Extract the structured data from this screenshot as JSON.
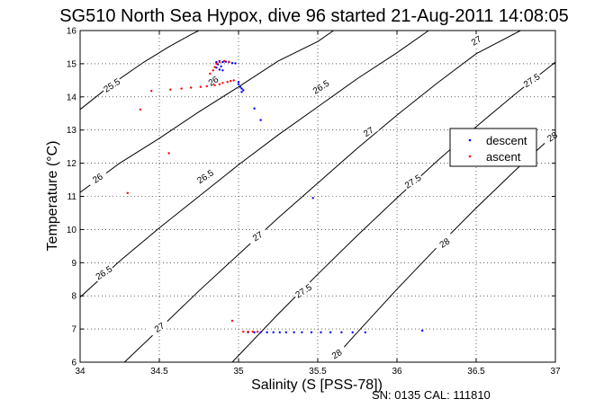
{
  "figure": {
    "title": "SG510 North Sea Hypox, dive 96 started 21-Aug-2011 14:08:05",
    "footer": "SN: 0135  CAL: 111810"
  },
  "chart_data": {
    "type": "scatter",
    "title": "SG510 North Sea Hypox, dive 96 started 21-Aug-2011 14:08:05",
    "xlabel": "Salinity (S [PSS-78])",
    "ylabel": "Temperature (°C)",
    "xlim": [
      34,
      37
    ],
    "ylim": [
      6,
      16
    ],
    "xticks": [
      34,
      34.5,
      35,
      35.5,
      36,
      36.5,
      37
    ],
    "xtick_labels": [
      "34",
      "34.5",
      "35",
      "35.5",
      "36",
      "36.5",
      "37"
    ],
    "yticks": [
      6,
      7,
      8,
      9,
      10,
      11,
      12,
      13,
      14,
      15,
      16
    ],
    "ytick_labels": [
      "6",
      "7",
      "8",
      "9",
      "10",
      "11",
      "12",
      "13",
      "14",
      "15",
      "16"
    ],
    "grid": true,
    "legend_position": "right",
    "series": [
      {
        "name": "descent",
        "color": "#0000ff",
        "points": [
          [
            34.86,
            15.05
          ],
          [
            34.88,
            15.08
          ],
          [
            34.9,
            15.05
          ],
          [
            34.92,
            15.06
          ],
          [
            34.94,
            15.05
          ],
          [
            34.96,
            15.02
          ],
          [
            34.98,
            15.01
          ],
          [
            34.87,
            14.98
          ],
          [
            34.89,
            14.92
          ],
          [
            34.86,
            14.88
          ],
          [
            34.9,
            14.8
          ],
          [
            34.88,
            14.82
          ],
          [
            35.0,
            14.45
          ],
          [
            35.0,
            14.38
          ],
          [
            35.01,
            14.3
          ],
          [
            35.02,
            14.25
          ],
          [
            35.03,
            14.2
          ],
          [
            35.02,
            14.15
          ],
          [
            35.1,
            13.65
          ],
          [
            35.14,
            13.3
          ],
          [
            35.47,
            10.95
          ],
          [
            35.06,
            6.9
          ],
          [
            35.1,
            6.9
          ],
          [
            35.14,
            6.9
          ],
          [
            35.18,
            6.9
          ],
          [
            35.22,
            6.9
          ],
          [
            35.26,
            6.9
          ],
          [
            35.3,
            6.9
          ],
          [
            35.35,
            6.9
          ],
          [
            35.4,
            6.9
          ],
          [
            35.46,
            6.9
          ],
          [
            35.52,
            6.9
          ],
          [
            35.58,
            6.9
          ],
          [
            35.65,
            6.9
          ],
          [
            35.72,
            6.9
          ],
          [
            35.8,
            6.9
          ],
          [
            36.16,
            6.95
          ]
        ]
      },
      {
        "name": "ascent",
        "color": "#ff0000",
        "points": [
          [
            34.3,
            11.1
          ],
          [
            34.38,
            13.62
          ],
          [
            34.45,
            14.18
          ],
          [
            34.56,
            12.3
          ],
          [
            34.57,
            14.22
          ],
          [
            34.64,
            14.25
          ],
          [
            34.7,
            14.28
          ],
          [
            34.76,
            14.3
          ],
          [
            34.8,
            14.32
          ],
          [
            34.85,
            14.35
          ],
          [
            34.88,
            14.38
          ],
          [
            34.9,
            14.42
          ],
          [
            34.93,
            14.45
          ],
          [
            34.95,
            14.48
          ],
          [
            34.97,
            14.5
          ],
          [
            34.82,
            14.7
          ],
          [
            34.84,
            14.8
          ],
          [
            34.85,
            14.9
          ],
          [
            34.86,
            15.0
          ],
          [
            34.88,
            15.05
          ],
          [
            34.91,
            15.08
          ],
          [
            34.94,
            15.06
          ],
          [
            34.96,
            7.25
          ],
          [
            35.03,
            6.92
          ],
          [
            35.06,
            6.92
          ],
          [
            35.09,
            6.92
          ],
          [
            35.12,
            6.92
          ]
        ]
      }
    ],
    "contours": [
      {
        "label": "25.5",
        "points": [
          [
            34.0,
            13.62
          ],
          [
            34.2,
            14.38
          ],
          [
            34.4,
            15.04
          ],
          [
            34.56,
            15.51
          ],
          [
            34.7,
            15.88
          ],
          [
            34.75,
            16.0
          ]
        ],
        "label_at": [
          34.2,
          14.35
        ]
      },
      {
        "label": "26",
        "points": [
          [
            34.0,
            11.12
          ],
          [
            34.25,
            12.0
          ],
          [
            34.5,
            12.75
          ],
          [
            34.75,
            13.55
          ],
          [
            35.0,
            14.3
          ],
          [
            35.25,
            15.08
          ],
          [
            35.5,
            15.67
          ],
          [
            35.6,
            16.0
          ]
        ],
        "label_at": [
          34.11,
          11.55
        ]
      },
      {
        "label": "26",
        "points": [],
        "label_at": [
          34.84,
          14.48
        ]
      },
      {
        "label": "26.5",
        "points": [
          [
            34.0,
            7.96
          ],
          [
            34.25,
            9.05
          ],
          [
            34.5,
            10.05
          ],
          [
            34.75,
            11.0
          ],
          [
            35.0,
            11.95
          ],
          [
            35.25,
            12.85
          ],
          [
            35.5,
            13.7
          ],
          [
            35.75,
            14.55
          ],
          [
            36.0,
            15.33
          ],
          [
            36.2,
            16.0
          ]
        ],
        "label_at": [
          34.15,
          8.7
        ]
      },
      {
        "label": "26.5",
        "points": [],
        "label_at": [
          34.79,
          11.6
        ]
      },
      {
        "label": "26.5",
        "points": [],
        "label_at": [
          35.52,
          14.3
        ]
      },
      {
        "label": "27",
        "points": [
          [
            34.28,
            6.0
          ],
          [
            34.5,
            7.0
          ],
          [
            34.75,
            8.15
          ],
          [
            35.0,
            9.25
          ],
          [
            35.25,
            10.35
          ],
          [
            35.5,
            11.4
          ],
          [
            35.75,
            12.45
          ],
          [
            36.0,
            13.45
          ],
          [
            36.25,
            14.4
          ],
          [
            36.5,
            15.3
          ],
          [
            36.78,
            16.0
          ]
        ],
        "label_at": [
          34.5,
          7.05
        ]
      },
      {
        "label": "27",
        "points": [],
        "label_at": [
          35.12,
          9.8
        ]
      },
      {
        "label": "27",
        "points": [],
        "label_at": [
          35.82,
          12.95
        ]
      },
      {
        "label": "27",
        "points": [],
        "label_at": [
          36.5,
          15.7
        ]
      },
      {
        "label": "27.5",
        "points": [
          [
            34.96,
            6.0
          ],
          [
            35.0,
            6.2
          ],
          [
            35.25,
            7.45
          ],
          [
            35.5,
            8.65
          ],
          [
            35.75,
            9.82
          ],
          [
            36.0,
            10.95
          ],
          [
            36.25,
            12.05
          ],
          [
            36.5,
            13.1
          ],
          [
            36.75,
            14.1
          ],
          [
            37.0,
            15.05
          ]
        ],
        "label_at": [
          35.41,
          8.15
        ]
      },
      {
        "label": "27.5",
        "points": [],
        "label_at": [
          36.1,
          11.45
        ]
      },
      {
        "label": "27.5",
        "points": [],
        "label_at": [
          36.85,
          14.5
        ]
      },
      {
        "label": "28",
        "points": [
          [
            35.58,
            6.0
          ],
          [
            35.75,
            6.9
          ],
          [
            36.0,
            8.2
          ],
          [
            36.25,
            9.45
          ],
          [
            36.5,
            10.65
          ],
          [
            36.75,
            11.8
          ],
          [
            37.0,
            12.9
          ]
        ],
        "label_at": [
          35.62,
          6.25
        ]
      },
      {
        "label": "28",
        "points": [],
        "label_at": [
          36.3,
          9.6
        ]
      },
      {
        "label": "28",
        "points": [],
        "label_at": [
          36.98,
          12.8
        ]
      }
    ]
  }
}
